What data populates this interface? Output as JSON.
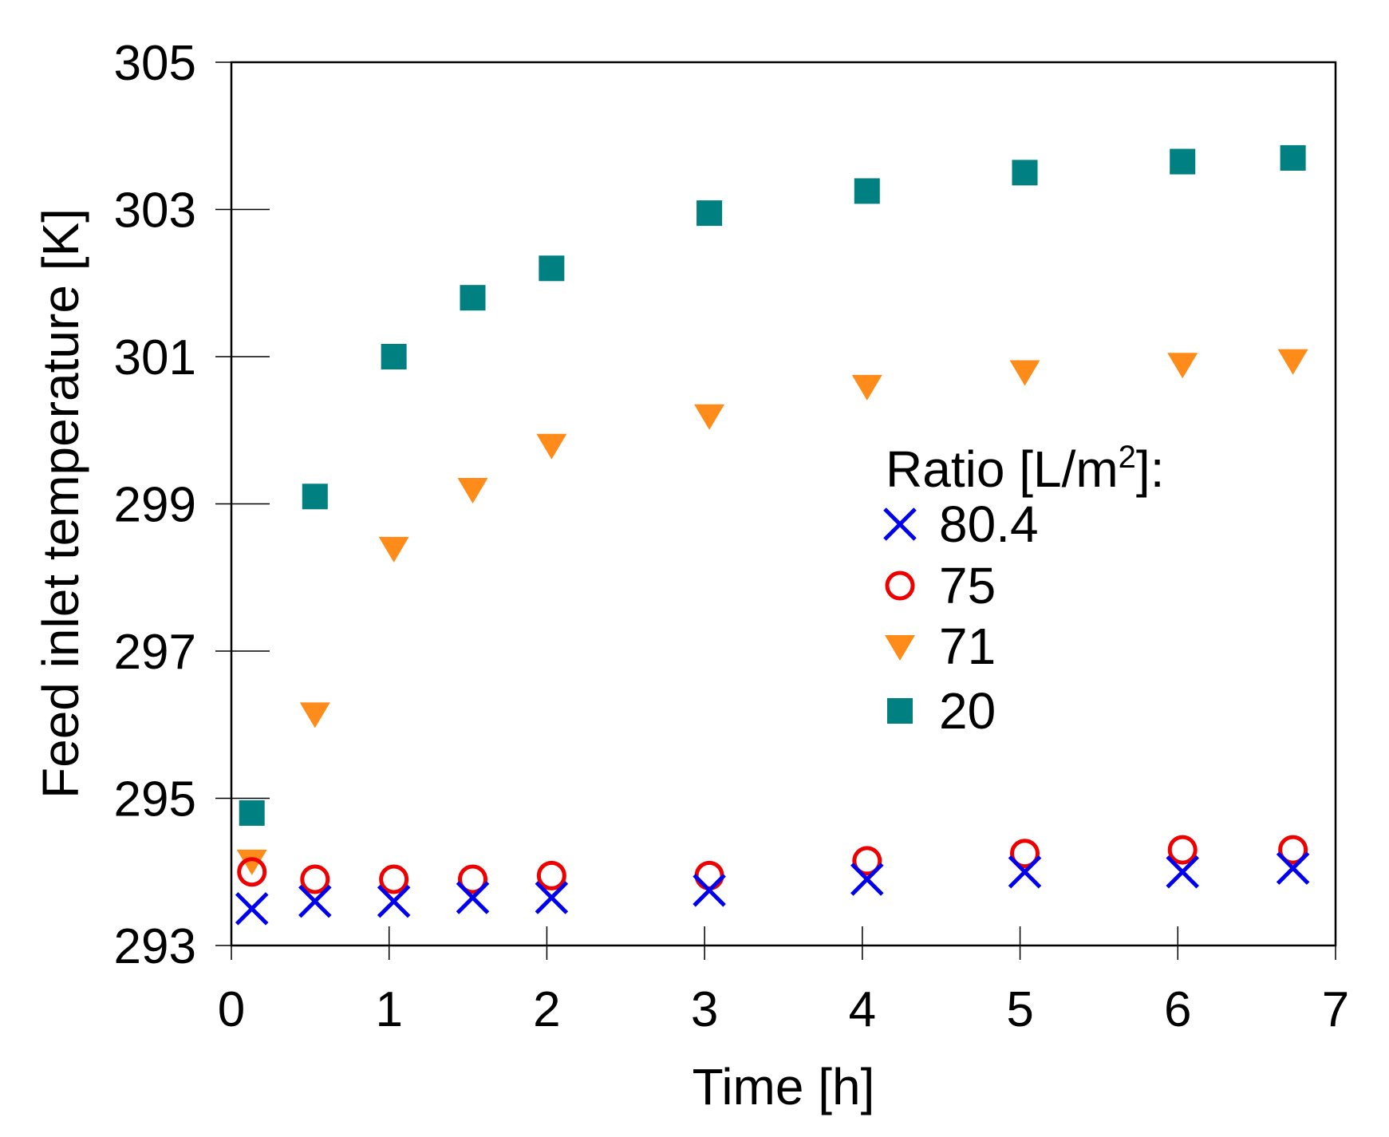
{
  "chart_data": {
    "type": "scatter",
    "title": "",
    "xlabel": "Time [h]",
    "ylabel": "Feed inlet temperature [K]",
    "xlim": [
      0,
      7
    ],
    "ylim": [
      293,
      305
    ],
    "xticks": [
      0,
      1,
      2,
      3,
      4,
      5,
      6,
      7
    ],
    "yticks": [
      293,
      295,
      297,
      299,
      301,
      303,
      305
    ],
    "grid": false,
    "legend": {
      "title_prefix": "Ratio [L/m",
      "title_sup": "2",
      "title_suffix": "]:",
      "placement": "center-right"
    },
    "series": [
      {
        "name": "80.4",
        "marker": "x",
        "color": "#0000ee",
        "x": [
          0.13,
          0.53,
          1.03,
          1.53,
          2.03,
          3.03,
          4.03,
          5.03,
          6.03,
          6.73
        ],
        "y": [
          293.5,
          293.6,
          293.6,
          293.65,
          293.65,
          293.75,
          293.9,
          294.0,
          294.0,
          294.05
        ]
      },
      {
        "name": "75",
        "marker": "circle-open",
        "color": "#ee0000",
        "x": [
          0.13,
          0.53,
          1.03,
          1.53,
          2.03,
          3.03,
          4.03,
          5.03,
          6.03,
          6.73
        ],
        "y": [
          294.0,
          293.9,
          293.9,
          293.9,
          293.95,
          293.95,
          294.15,
          294.25,
          294.3,
          294.3
        ]
      },
      {
        "name": "71",
        "marker": "triangle-down",
        "color": "#ff8c1a",
        "x": [
          0.13,
          0.53,
          1.03,
          1.53,
          2.03,
          3.03,
          4.03,
          5.03,
          6.03,
          6.73
        ],
        "y": [
          294.15,
          296.15,
          298.4,
          299.2,
          299.8,
          300.2,
          300.6,
          300.8,
          300.9,
          300.95
        ]
      },
      {
        "name": "20",
        "marker": "square",
        "color": "#008080",
        "x": [
          0.13,
          0.53,
          1.03,
          1.53,
          2.03,
          3.03,
          4.03,
          5.03,
          6.03,
          6.73
        ],
        "y": [
          294.8,
          299.1,
          301.0,
          301.8,
          302.2,
          302.95,
          303.25,
          303.5,
          303.65,
          303.7
        ]
      }
    ]
  }
}
